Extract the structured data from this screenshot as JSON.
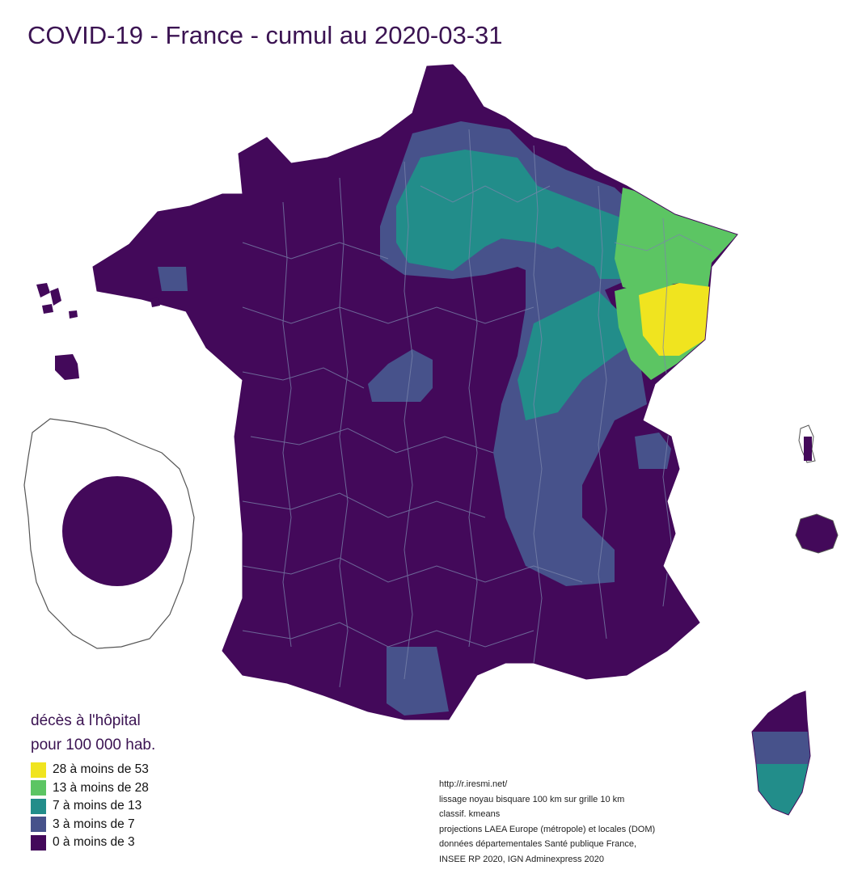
{
  "title": "COVID-19 - France - cumul au 2020-03-31",
  "legend": {
    "title_line1": "décès à l'hôpital",
    "title_line2": "pour 100 000 hab.",
    "items": [
      {
        "label": "28 à moins de 53",
        "color": "#f0e41f"
      },
      {
        "label": "13 à moins de 28",
        "color": "#5cc563"
      },
      {
        "label": "7 à moins de 13",
        "color": "#228d8a"
      },
      {
        "label": "3 à moins de 7",
        "color": "#47528b"
      },
      {
        "label": "0 à moins de 3",
        "color": "#43095a"
      }
    ]
  },
  "credits": [
    "http://r.iresmi.net/",
    "lissage noyau bisquare 100 km sur grille 10 km",
    "classif. kmeans",
    "projections LAEA Europe (métropole) et locales (DOM)",
    "données départementales Santé publique France,",
    "INSEE RP 2020, IGN Adminexpress 2020"
  ],
  "map": {
    "colors": {
      "background": "#ffffff",
      "boundary": "#7b86ad",
      "outline": "#555555"
    },
    "regions": [
      {
        "name": "north-east-grand-est",
        "class": "13 à moins de 28"
      },
      {
        "name": "vosges-alsace",
        "class": "28 à moins de 53"
      },
      {
        "name": "ile-de-france-hauts-de-france",
        "class": "7 à moins de 13"
      },
      {
        "name": "bourgogne-franche-comte",
        "class": "7 à moins de 13"
      },
      {
        "name": "rhone-alpes",
        "class": "3 à moins de 7"
      },
      {
        "name": "corse",
        "class": "7 à moins de 13"
      },
      {
        "name": "dom-guyane",
        "class": "0 à moins de 3"
      }
    ]
  }
}
